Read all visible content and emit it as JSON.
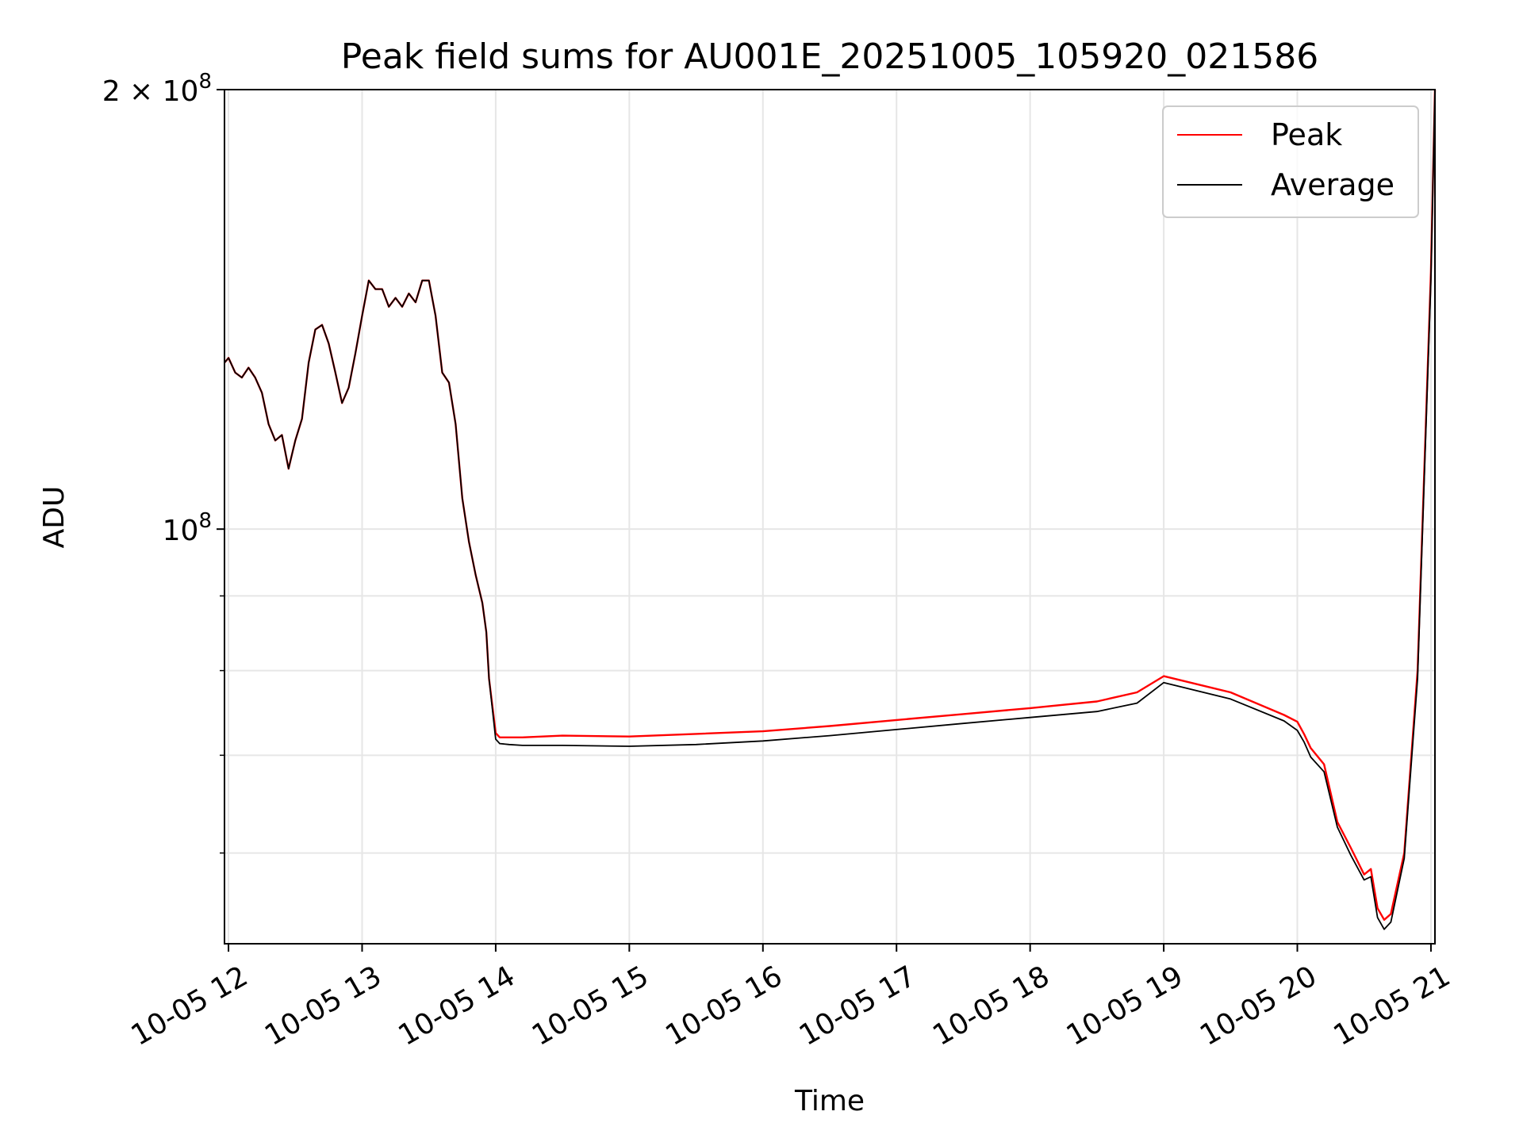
{
  "chart_data": {
    "type": "line",
    "title": "Peak field sums for AU001E_20251005_105920_021586",
    "xlabel": "Time",
    "ylabel": "ADU",
    "yscale": "log",
    "ylim": [
      52000000,
      200000000
    ],
    "xlim": [
      11.97,
      21.03
    ],
    "grid": true,
    "legend_position": "upper right",
    "x_ticks": [
      {
        "value": 12,
        "label": "10-05 12"
      },
      {
        "value": 13,
        "label": "10-05 13"
      },
      {
        "value": 14,
        "label": "10-05 14"
      },
      {
        "value": 15,
        "label": "10-05 15"
      },
      {
        "value": 16,
        "label": "10-05 16"
      },
      {
        "value": 17,
        "label": "10-05 17"
      },
      {
        "value": 18,
        "label": "10-05 18"
      },
      {
        "value": 19,
        "label": "10-05 19"
      },
      {
        "value": 20,
        "label": "10-05 20"
      },
      {
        "value": 21,
        "label": "10-05 21"
      }
    ],
    "y_major_ticks": [
      {
        "value": 100000000,
        "base": "10",
        "exp": "8"
      },
      {
        "value": 200000000,
        "base": "2 × 10",
        "exp": "8"
      }
    ],
    "y_minor_ticks": [
      60000000,
      70000000,
      80000000,
      90000000
    ],
    "series": [
      {
        "name": "Peak",
        "color": "#ff0000",
        "x": [
          11.97,
          12.0,
          12.05,
          12.1,
          12.15,
          12.2,
          12.25,
          12.3,
          12.35,
          12.4,
          12.45,
          12.48,
          12.5,
          12.55,
          12.6,
          12.65,
          12.7,
          12.75,
          12.8,
          12.85,
          12.9,
          12.95,
          13.0,
          13.05,
          13.1,
          13.15,
          13.2,
          13.25,
          13.3,
          13.35,
          13.4,
          13.45,
          13.5,
          13.55,
          13.6,
          13.65,
          13.7,
          13.75,
          13.8,
          13.85,
          13.9,
          13.93,
          13.95,
          14.0,
          14.03,
          14.1,
          14.2,
          14.5,
          15.0,
          15.5,
          16.0,
          16.5,
          17.0,
          17.5,
          18.0,
          18.5,
          18.8,
          19.0,
          19.5,
          19.9,
          20.0,
          20.05,
          20.1,
          20.2,
          20.3,
          20.4,
          20.5,
          20.55,
          20.6,
          20.65,
          20.7,
          20.8,
          20.9,
          21.0,
          21.03
        ],
        "y": [
          130000000,
          131000000,
          128000000,
          127000000,
          129000000,
          127000000,
          124000000,
          118000000,
          115000000,
          116000000,
          110000000,
          113000000,
          115000000,
          119000000,
          130000000,
          137000000,
          138000000,
          134000000,
          128000000,
          122000000,
          125000000,
          132000000,
          140000000,
          148000000,
          146000000,
          146000000,
          142000000,
          144000000,
          142000000,
          145000000,
          143000000,
          148000000,
          148000000,
          140000000,
          128000000,
          126000000,
          118000000,
          105000000,
          98000000,
          93000000,
          89000000,
          85000000,
          79000000,
          72500000,
          72000000,
          72000000,
          72000000,
          72200000,
          72100000,
          72400000,
          72700000,
          73300000,
          74000000,
          74700000,
          75400000,
          76200000,
          77300000,
          79300000,
          77300000,
          74600000,
          73800000,
          72400000,
          70800000,
          69000000,
          63000000,
          60500000,
          58000000,
          58500000,
          55000000,
          54000000,
          54500000,
          60000000,
          80000000,
          150000000,
          200000000
        ]
      },
      {
        "name": "Average",
        "color": "#000000",
        "x": [
          11.97,
          12.0,
          12.05,
          12.1,
          12.15,
          12.2,
          12.25,
          12.3,
          12.35,
          12.4,
          12.45,
          12.48,
          12.5,
          12.55,
          12.6,
          12.65,
          12.7,
          12.75,
          12.8,
          12.85,
          12.9,
          12.95,
          13.0,
          13.05,
          13.1,
          13.15,
          13.2,
          13.25,
          13.3,
          13.35,
          13.4,
          13.45,
          13.5,
          13.55,
          13.6,
          13.65,
          13.7,
          13.75,
          13.8,
          13.85,
          13.9,
          13.93,
          13.95,
          14.0,
          14.03,
          14.1,
          14.2,
          14.5,
          15.0,
          15.5,
          16.0,
          16.5,
          17.0,
          17.5,
          18.0,
          18.5,
          18.8,
          19.0,
          19.5,
          19.9,
          20.0,
          20.05,
          20.1,
          20.2,
          20.3,
          20.4,
          20.5,
          20.55,
          20.6,
          20.65,
          20.7,
          20.8,
          20.9,
          21.0,
          21.03
        ],
        "y": [
          130000000,
          131000000,
          128000000,
          127000000,
          129000000,
          127000000,
          124000000,
          118000000,
          115000000,
          116000000,
          110000000,
          113000000,
          115000000,
          119000000,
          130000000,
          137000000,
          138000000,
          134000000,
          128000000,
          122000000,
          125000000,
          132000000,
          140000000,
          148000000,
          146000000,
          146000000,
          142000000,
          144000000,
          142000000,
          145000000,
          143000000,
          148000000,
          148000000,
          140000000,
          128000000,
          126000000,
          118000000,
          105000000,
          98000000,
          93000000,
          89000000,
          85000000,
          79000000,
          71800000,
          71300000,
          71200000,
          71100000,
          71100000,
          71000000,
          71200000,
          71600000,
          72200000,
          72900000,
          73600000,
          74300000,
          75000000,
          76000000,
          78500000,
          76500000,
          73900000,
          72800000,
          71500000,
          69800000,
          68200000,
          62500000,
          59800000,
          57500000,
          57800000,
          54200000,
          53200000,
          53800000,
          59500000,
          79000000,
          148000000,
          200000000
        ]
      }
    ]
  }
}
